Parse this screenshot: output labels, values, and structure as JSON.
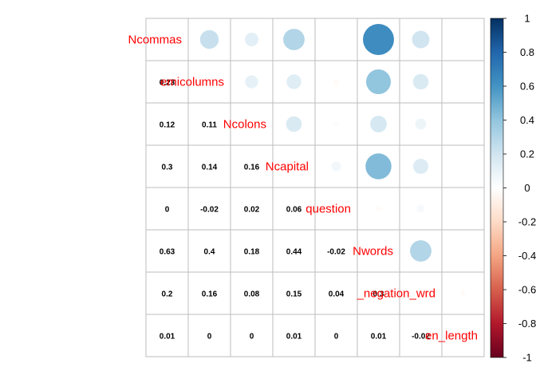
{
  "chart_data": {
    "type": "heatmap",
    "variables": [
      "Ncommas",
      "Nsemicolumns",
      "Ncolons",
      "Ncapital",
      "Nquestion",
      "Nwords",
      "N_negation_wrd",
      "N_sen_length"
    ],
    "displayed_labels": [
      "Ncommas",
      "emicolumns",
      "Ncolons",
      "Ncapital",
      "question",
      "Nwords",
      "_negation_wrd",
      "en_length"
    ],
    "matrix": [
      [
        1,
        0.23,
        0.12,
        0.3,
        0,
        0.63,
        0.2,
        0.01
      ],
      [
        0.23,
        1,
        0.11,
        0.14,
        -0.02,
        0.4,
        0.16,
        0
      ],
      [
        0.12,
        0.11,
        1,
        0.16,
        0.02,
        0.18,
        0.08,
        0
      ],
      [
        0.3,
        0.14,
        0.16,
        1,
        0.06,
        0.44,
        0.15,
        0.01
      ],
      [
        0,
        -0.02,
        0.02,
        0.06,
        1,
        -0.02,
        0.04,
        0
      ],
      [
        0.63,
        0.4,
        0.18,
        0.44,
        -0.02,
        1,
        0.3,
        0.01
      ],
      [
        0.2,
        0.16,
        0.08,
        0.15,
        0.04,
        0.3,
        1,
        -0.02
      ],
      [
        0.01,
        0,
        0,
        0.01,
        0,
        0.01,
        -0.02,
        1
      ]
    ],
    "lower_labels": [
      [
        "0.23"
      ],
      [
        "0.12",
        "0.11"
      ],
      [
        "0.3",
        "0.14",
        "0.16"
      ],
      [
        "0",
        "-0.02",
        "0.02",
        "0.06"
      ],
      [
        "0.63",
        "0.4",
        "0.18",
        "0.44",
        "-0.02"
      ],
      [
        "0.2",
        "0.16",
        "0.08",
        "0.15",
        "0.04",
        "0.3"
      ],
      [
        "0.01",
        "0",
        "0",
        "0.01",
        "0",
        "0.01",
        "-0.02"
      ]
    ],
    "upper_display": "circle",
    "lower_display": "number",
    "color_scale": {
      "range": [
        -1,
        1
      ],
      "ticks": [
        "1",
        "0.8",
        "0.6",
        "0.4",
        "0.2",
        "0",
        "-0.2",
        "-0.4",
        "-0.6",
        "-0.8",
        "-1"
      ],
      "colors": [
        "#67001F",
        "#B2182B",
        "#D6604D",
        "#F4A582",
        "#FDDBC7",
        "#FFFFFF",
        "#D1E5F0",
        "#92C5DE",
        "#4393C3",
        "#2166AC",
        "#053061"
      ]
    },
    "legend": "right",
    "grid": true,
    "label_color": "#FF0000"
  }
}
